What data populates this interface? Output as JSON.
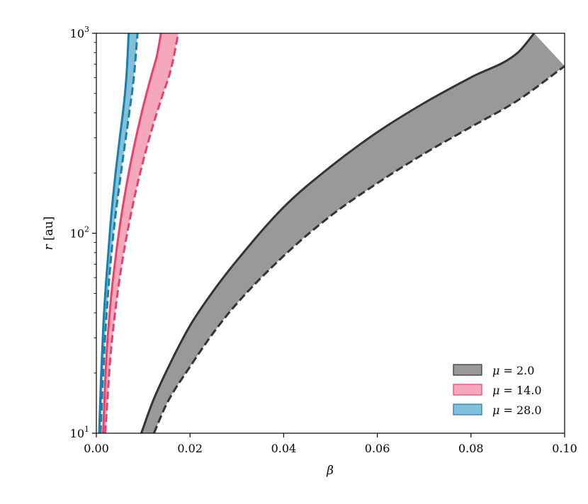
{
  "chart_data": {
    "type": "area",
    "xlabel": "β",
    "ylabel_italic": "r",
    "ylabel_unit": " [au]",
    "xlim": [
      0.0,
      0.1
    ],
    "ylim": [
      10,
      1000
    ],
    "yscale": "log",
    "x_ticks": [
      0.0,
      0.02,
      0.04,
      0.06,
      0.08,
      0.1
    ],
    "x_tick_labels": [
      "0.00",
      "0.02",
      "0.04",
      "0.06",
      "0.08",
      "0.10"
    ],
    "y_ticks": [
      10,
      100,
      1000
    ],
    "y_tick_base": "10",
    "y_tick_exponents": [
      "1",
      "2",
      "3"
    ],
    "grid": false,
    "legend_position": "lower-right",
    "series": [
      {
        "name": "μ = 2.0",
        "legend_prefix": "μ",
        "legend_suffix": " = 2.0",
        "line_color": "#333333",
        "fill_color": "#999999",
        "fill_opacity": 1.0,
        "upper": {
          "x": [
            0.0096,
            0.012,
            0.015,
            0.02,
            0.025,
            0.03,
            0.04,
            0.05,
            0.06,
            0.07,
            0.08,
            0.09,
            0.0935
          ],
          "y": [
            10,
            14.3,
            20.5,
            34.5,
            51.5,
            73,
            135,
            215,
            320,
            448,
            602,
            800,
            1000
          ]
        },
        "lower": {
          "x": [
            0.0123,
            0.015,
            0.02,
            0.025,
            0.03,
            0.04,
            0.05,
            0.06,
            0.07,
            0.08,
            0.09,
            0.1
          ],
          "y": [
            10,
            14,
            21.5,
            31.8,
            44.5,
            77,
            122,
            178,
            250,
            340,
            462,
            685
          ]
        }
      },
      {
        "name": "μ = 14.0",
        "legend_prefix": "μ",
        "legend_suffix": " = 14.0",
        "line_color": "#e8426a",
        "fill_color": "#f28aa5",
        "fill_opacity": 0.75,
        "upper": {
          "x": [
            0.00145,
            0.002,
            0.003,
            0.004,
            0.005,
            0.006,
            0.007,
            0.008,
            0.009,
            0.01,
            0.011,
            0.012,
            0.013,
            0.0138
          ],
          "y": [
            10,
            21,
            44,
            72,
            108,
            152,
            205,
            268,
            342,
            430,
            530,
            645,
            785,
            1000
          ]
        },
        "lower": {
          "x": [
            0.0019,
            0.003,
            0.004,
            0.005,
            0.006,
            0.008,
            0.01,
            0.012,
            0.014,
            0.016,
            0.0175
          ],
          "y": [
            10,
            24,
            40,
            60,
            84,
            146,
            230,
            340,
            480,
            670,
            1000
          ]
        }
      },
      {
        "name": "μ = 28.0",
        "legend_prefix": "μ",
        "legend_suffix": " = 28.0",
        "line_color": "#1a7faa",
        "fill_color": "#82bfd8",
        "fill_opacity": 1.0,
        "upper": {
          "x": [
            0.0006,
            0.001,
            0.0015,
            0.002,
            0.003,
            0.004,
            0.005,
            0.006,
            0.0065,
            0.0069
          ],
          "y": [
            10,
            19,
            35,
            54,
            110,
            190,
            300,
            470,
            650,
            1000
          ]
        },
        "lower": {
          "x": [
            0.0009,
            0.0015,
            0.002,
            0.003,
            0.004,
            0.005,
            0.006,
            0.007,
            0.008,
            0.0088
          ],
          "y": [
            10,
            21,
            34,
            70,
            118,
            180,
            268,
            395,
            600,
            1000
          ]
        }
      }
    ]
  }
}
